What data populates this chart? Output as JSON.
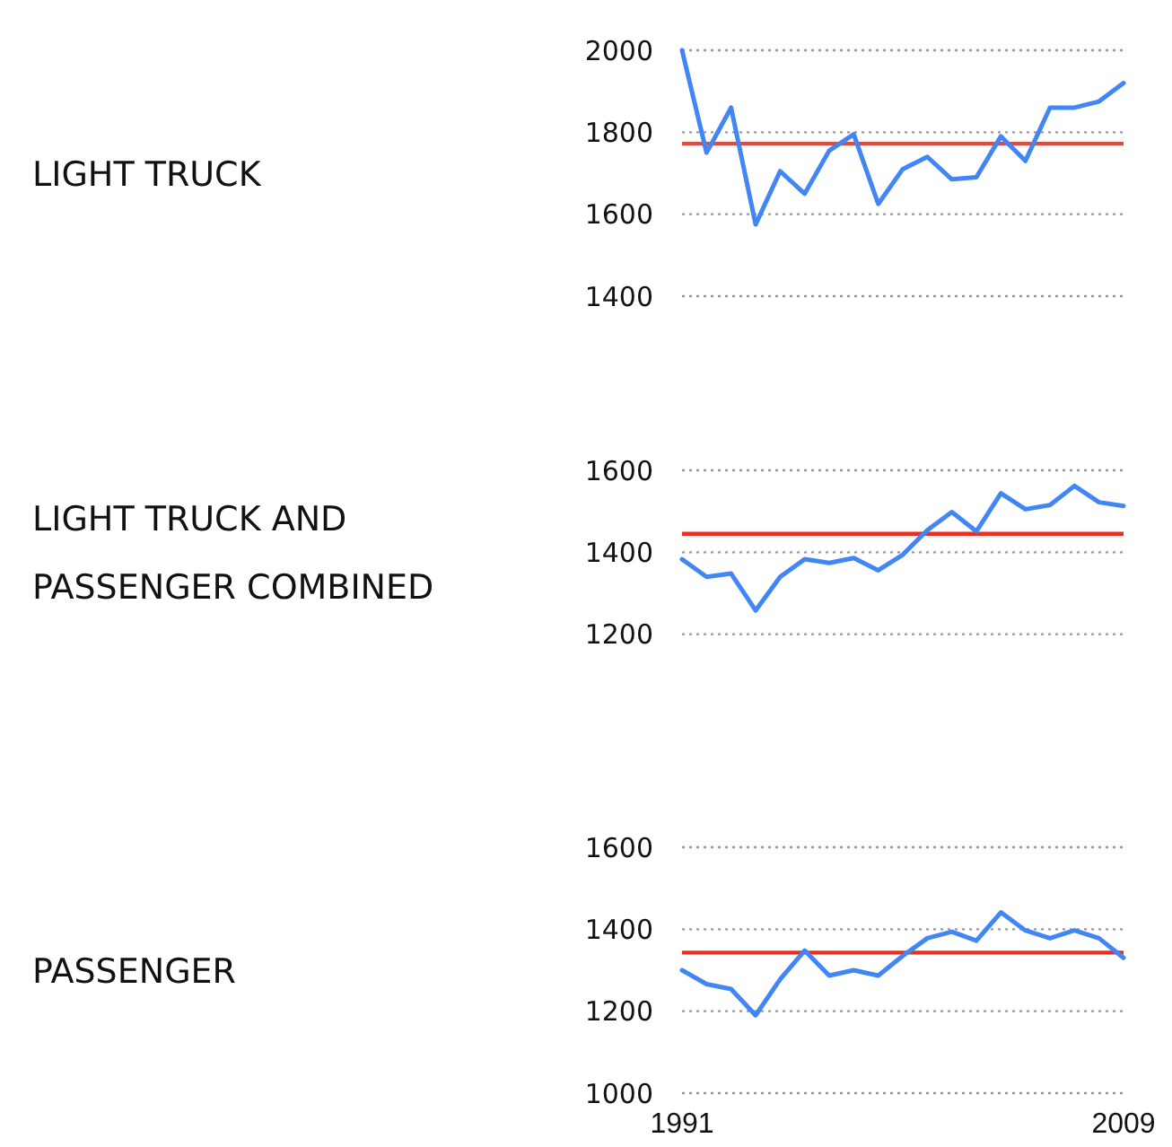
{
  "chart_data": [
    {
      "type": "line",
      "ylabel": "LIGHT TRUCK",
      "x": [
        1991,
        1992,
        1993,
        1994,
        1995,
        1996,
        1997,
        1998,
        1999,
        2000,
        2001,
        2002,
        2003,
        2004,
        2005,
        2006,
        2007,
        2008,
        2009
      ],
      "series": [
        {
          "color": "#4285f4",
          "values": [
            2000,
            1750,
            1860,
            1575,
            1705,
            1650,
            1755,
            1795,
            1625,
            1710,
            1740,
            1685,
            1690,
            1790,
            1730,
            1860,
            1860,
            1875,
            1920
          ]
        }
      ],
      "xlim": [
        1991,
        2009
      ],
      "ylim": [
        1400,
        2000
      ],
      "yticks": [
        1400,
        1600,
        1800,
        2000
      ],
      "grid": "y",
      "tick_labels": "y",
      "ref_lines": [
        {
          "axis": "y",
          "value": 1772,
          "color": "#e04a3f"
        }
      ]
    },
    {
      "type": "line",
      "ylabel": "LIGHT TRUCK AND PASSENGER COMBINED",
      "x": [
        1991,
        1992,
        1993,
        1994,
        1995,
        1996,
        1997,
        1998,
        1999,
        2000,
        2001,
        2002,
        2003,
        2004,
        2005,
        2006,
        2007,
        2008,
        2009
      ],
      "series": [
        {
          "color": "#4285f4",
          "values": [
            1383,
            1340,
            1348,
            1258,
            1340,
            1383,
            1374,
            1386,
            1356,
            1394,
            1454,
            1498,
            1451,
            1544,
            1505,
            1515,
            1562,
            1522,
            1513
          ]
        }
      ],
      "xlim": [
        1991,
        2009
      ],
      "ylim": [
        1200,
        1600
      ],
      "yticks": [
        1200,
        1400,
        1600
      ],
      "grid": "y",
      "tick_labels": "y",
      "ref_lines": [
        {
          "axis": "y",
          "value": 1445,
          "color": "#f02c1a"
        }
      ]
    },
    {
      "type": "line",
      "ylabel": "PASSENGER",
      "x": [
        1991,
        1992,
        1993,
        1994,
        1995,
        1996,
        1997,
        1998,
        1999,
        2000,
        2001,
        2002,
        2003,
        2004,
        2005,
        2006,
        2007,
        2008,
        2009
      ],
      "series": [
        {
          "color": "#4285f4",
          "values": [
            1300,
            1266,
            1254,
            1190,
            1278,
            1348,
            1287,
            1300,
            1287,
            1335,
            1378,
            1394,
            1372,
            1441,
            1397,
            1378,
            1397,
            1378,
            1330
          ]
        }
      ],
      "xlim": [
        1991,
        2009
      ],
      "xticks": [
        1991,
        2009
      ],
      "ylim": [
        1000,
        1600
      ],
      "yticks": [
        1000,
        1200,
        1400,
        1600
      ],
      "grid": "y",
      "ref_lines": [
        {
          "axis": "y",
          "value": 1343,
          "color": "#f02c1a"
        }
      ]
    }
  ]
}
